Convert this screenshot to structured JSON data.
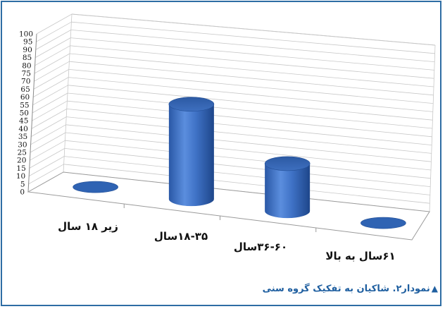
{
  "caption": {
    "marker": "▲",
    "text": "نمودار۲. شاکیان به تفکیک گروه سنی"
  },
  "colors": {
    "frame": "#2e6da4",
    "cylinder": "#3b6fc0",
    "caption": "#1f5fa0"
  },
  "chart_data": {
    "type": "bar",
    "style": "3d-cylinder",
    "title": "",
    "xlabel": "",
    "ylabel": "",
    "ylim": [
      0,
      100
    ],
    "ytick_step": 5,
    "ytick_labels": [
      "0",
      "5",
      "10",
      "15",
      "20",
      "25",
      "30",
      "35",
      "40",
      "45",
      "50",
      "55",
      "60",
      "65",
      "70",
      "75",
      "80",
      "85",
      "90",
      "95",
      "100"
    ],
    "categories": [
      "زیر ۱۸ سال",
      "۱۸-۳۵سال",
      "۳۶-۶۰سال",
      "۶۱سال به بالا"
    ],
    "values": [
      0,
      60,
      30,
      0
    ],
    "grid": true
  }
}
